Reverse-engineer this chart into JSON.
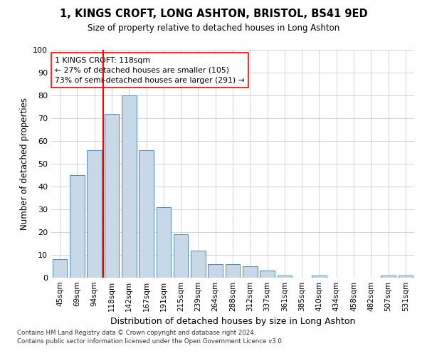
{
  "title": "1, KINGS CROFT, LONG ASHTON, BRISTOL, BS41 9ED",
  "subtitle": "Size of property relative to detached houses in Long Ashton",
  "xlabel": "Distribution of detached houses by size in Long Ashton",
  "ylabel": "Number of detached properties",
  "footnote1": "Contains HM Land Registry data © Crown copyright and database right 2024.",
  "footnote2": "Contains public sector information licensed under the Open Government Licence v3.0.",
  "categories": [
    "45sqm",
    "69sqm",
    "94sqm",
    "118sqm",
    "142sqm",
    "167sqm",
    "191sqm",
    "215sqm",
    "239sqm",
    "264sqm",
    "288sqm",
    "312sqm",
    "337sqm",
    "361sqm",
    "385sqm",
    "410sqm",
    "434sqm",
    "458sqm",
    "482sqm",
    "507sqm",
    "531sqm"
  ],
  "values": [
    8,
    45,
    56,
    72,
    80,
    56,
    31,
    19,
    12,
    6,
    6,
    5,
    3,
    1,
    0,
    1,
    0,
    0,
    0,
    1,
    1
  ],
  "bar_color": "#c8d8e8",
  "bar_edge_color": "#5588aa",
  "red_line_index": 3,
  "annotation_line1": "1 KINGS CROFT: 118sqm",
  "annotation_line2": "← 27% of detached houses are smaller (105)",
  "annotation_line3": "73% of semi-detached houses are larger (291) →",
  "ylim": [
    0,
    100
  ],
  "yticks": [
    0,
    10,
    20,
    30,
    40,
    50,
    60,
    70,
    80,
    90,
    100
  ],
  "background_color": "#ffffff",
  "grid_color": "#cccccc"
}
